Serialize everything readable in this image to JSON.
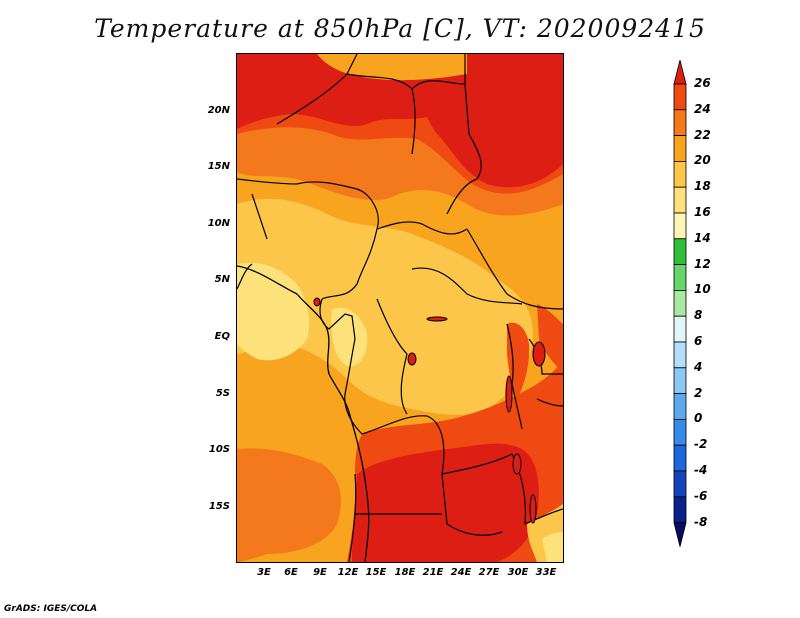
{
  "title": "Temperature at 850hPa [C], VT: 2020092415",
  "footer": "GrADS: IGES/COLA",
  "lat_labels": [
    "20N",
    "15N",
    "10N",
    "5N",
    "EQ",
    "5S",
    "10S",
    "15S"
  ],
  "lon_labels": [
    "3E",
    "6E",
    "9E",
    "12E",
    "15E",
    "18E",
    "21E",
    "24E",
    "27E",
    "30E",
    "33E"
  ],
  "colorbar": {
    "labels": [
      "26",
      "24",
      "22",
      "20",
      "18",
      "16",
      "14",
      "12",
      "10",
      "8",
      "6",
      "4",
      "2",
      "0",
      "-2",
      "-4",
      "-6",
      "-8"
    ],
    "colors": [
      "#dc1e14",
      "#ee4a12",
      "#f4781c",
      "#f8a41e",
      "#fbc64a",
      "#fde27c",
      "#fff5b4",
      "#2fbf3a",
      "#65d66a",
      "#a8e8a0",
      "#e1f6f8",
      "#b3dff8",
      "#8ac7f4",
      "#5ca9ee",
      "#3a8ae8",
      "#1e66dc",
      "#1444bc",
      "#0a218c",
      "#0a0a60"
    ]
  }
}
